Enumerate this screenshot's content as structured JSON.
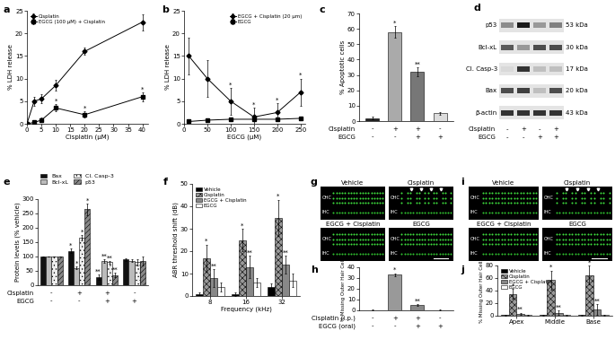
{
  "chart_data": [
    {
      "title": "a",
      "type": "line",
      "x_label": "Cisplatin (µM)",
      "y_label": "% LDH release",
      "x": [
        0,
        2.5,
        5,
        10,
        20,
        40
      ],
      "xlim": [
        0,
        42
      ],
      "xticks": [
        0,
        5,
        10,
        15,
        20,
        25,
        30,
        35,
        40
      ],
      "ylim": [
        0,
        25
      ],
      "yticks": [
        0,
        5,
        10,
        15,
        20,
        25
      ],
      "legend": "upper left",
      "series": [
        {
          "name": "Cisplatin",
          "color": "#000000",
          "marker": "diamond",
          "values": [
            0,
            5,
            5.5,
            8.5,
            16,
            22.5
          ],
          "errors": [
            0.5,
            1,
            1,
            1.2,
            0.8,
            1.8
          ],
          "annotations": [
            null,
            null,
            null,
            null,
            null,
            null
          ]
        },
        {
          "name": "EGCG (100 µM) + Cisplatin",
          "color": "#000000",
          "marker": "square",
          "values": [
            0,
            0.3,
            0.8,
            3.5,
            2,
            6
          ],
          "errors": [
            0.3,
            0.3,
            0.5,
            0.8,
            0.7,
            1
          ],
          "annotations": [
            null,
            null,
            null,
            "*",
            "*",
            "*"
          ]
        }
      ]
    },
    {
      "title": "b",
      "type": "line",
      "x_label": "EGCG (µM)",
      "y_label": "% LDH release",
      "x": [
        10,
        50,
        100,
        150,
        200,
        250
      ],
      "xlim": [
        0,
        260
      ],
      "xticks": [
        0,
        50,
        100,
        150,
        200,
        250
      ],
      "ylim": [
        0,
        25
      ],
      "yticks": [
        0,
        5,
        10,
        15,
        20,
        25
      ],
      "legend": "upper right",
      "series": [
        {
          "name": "EGCG + Cisplatin (20 µm)",
          "color": "#000000",
          "marker": "diamond",
          "values": [
            15,
            10,
            5,
            1.5,
            2.5,
            7
          ],
          "errors": [
            4,
            4,
            3,
            2,
            2,
            3
          ],
          "annotations": [
            null,
            null,
            "*",
            "*",
            "*",
            "*"
          ]
        },
        {
          "name": "EGCG",
          "color": "#000000",
          "marker": "square",
          "values": [
            0.5,
            0.8,
            1,
            1,
            1,
            1.2
          ],
          "errors": [
            0.3,
            0.3,
            0.3,
            0.3,
            0.3,
            0.3
          ],
          "annotations": [
            null,
            null,
            null,
            null,
            null,
            null
          ]
        }
      ]
    },
    {
      "title": "c",
      "type": "bar",
      "y_label": "% Apoptotic cells",
      "ylim": [
        0,
        70
      ],
      "yticks": [
        0,
        10,
        20,
        30,
        40,
        50,
        60,
        70
      ],
      "values": [
        2,
        58,
        32,
        5
      ],
      "errors": [
        1,
        4,
        3,
        1
      ],
      "colors": [
        "#222222",
        "#aaaaaa",
        "#777777",
        "#dddddd"
      ],
      "annotations": [
        null,
        "*",
        "**",
        null
      ],
      "conditions": [
        {
          "label": "Cisplatin",
          "signs": [
            "-",
            "+",
            "+",
            "-"
          ]
        },
        {
          "label": "EGCG",
          "signs": [
            "-",
            "-",
            "+",
            "+"
          ]
        }
      ]
    },
    {
      "title": "e",
      "type": "bar",
      "y_label": "Protein levels (% vehicle)",
      "ylim": [
        0,
        300
      ],
      "yticks": [
        0,
        50,
        100,
        150,
        200,
        250,
        300
      ],
      "legend": "upper left",
      "conditions": [
        {
          "label": "Cisplatin",
          "signs": [
            "-",
            "+",
            "+",
            "-"
          ]
        },
        {
          "label": "EGCG",
          "signs": [
            "-",
            "-",
            "+",
            "+"
          ]
        }
      ],
      "series": [
        {
          "name": "Bax",
          "color": "#111111",
          "values": [
            100,
            120,
            28,
            90
          ],
          "errors": [
            0,
            8,
            8,
            5
          ],
          "annotations": [
            null,
            "*",
            "**",
            null
          ]
        },
        {
          "name": "Bcl-xL",
          "color": "#bbbbbb",
          "values": [
            100,
            60,
            85,
            85
          ],
          "errors": [
            0,
            5,
            6,
            5
          ],
          "annotations": [
            null,
            "*",
            "**",
            null
          ]
        },
        {
          "name": "Cl. Casp-3",
          "color": "#eeeeee",
          "values": [
            100,
            165,
            80,
            80
          ],
          "errors": [
            0,
            10,
            5,
            10
          ],
          "annotations": [
            null,
            "*",
            "**",
            null
          ]
        },
        {
          "name": "p53",
          "color": "#888888",
          "values": [
            100,
            265,
            35,
            85
          ],
          "errors": [
            0,
            20,
            8,
            15
          ],
          "annotations": [
            null,
            "*",
            "**",
            null
          ]
        }
      ]
    },
    {
      "title": "f",
      "type": "bar",
      "x_label": "Frequency (kHz)",
      "y_label": "ABR threshold shift (dB)",
      "categories": [
        "8",
        "16",
        "32"
      ],
      "ylim": [
        0,
        50
      ],
      "yticks": [
        0,
        10,
        20,
        30,
        40,
        50
      ],
      "legend": "upper left",
      "series": [
        {
          "name": "Vehicle",
          "color": "#000000",
          "values": [
            1,
            1,
            4
          ],
          "errors": [
            0.5,
            0.8,
            1.5
          ],
          "annotations": [
            null,
            null,
            null
          ]
        },
        {
          "name": "Cisplatin",
          "color": "#999999",
          "values": [
            17,
            25,
            35
          ],
          "errors": [
            6,
            5,
            8
          ],
          "annotations": [
            "*",
            "*",
            "*"
          ]
        },
        {
          "name": "EGCG + Cisplatin",
          "color": "#888888",
          "values": [
            8,
            13,
            14
          ],
          "errors": [
            4,
            5,
            4
          ],
          "annotations": [
            "**",
            "**",
            "**"
          ]
        },
        {
          "name": "EGCG",
          "color": "#ffffff",
          "values": [
            4,
            6,
            7
          ],
          "errors": [
            2,
            2,
            3
          ],
          "annotations": [
            null,
            null,
            null
          ]
        }
      ]
    },
    {
      "title": "h",
      "type": "bar",
      "y_label": "% Missing Outer Hair Cells",
      "ylim": [
        0,
        40
      ],
      "yticks": [
        0,
        10,
        20,
        30,
        40
      ],
      "values": [
        0.3,
        33,
        5,
        0.3
      ],
      "errors": [
        0.2,
        1.5,
        0.8,
        0.2
      ],
      "colors": [
        "#000000",
        "#999999",
        "#888888",
        "#ffffff"
      ],
      "annotations": [
        null,
        "*",
        "**",
        null
      ],
      "conditions": [
        {
          "label": "Cisplatin (i.p.)",
          "signs": [
            "-",
            "+",
            "+",
            "-"
          ]
        },
        {
          "label": "EGCG (oral)",
          "signs": [
            "-",
            "-",
            "+",
            "+"
          ]
        }
      ]
    },
    {
      "title": "j",
      "type": "bar",
      "y_label": "% Missing Outer Hair Cells",
      "categories": [
        "Apex",
        "Middle",
        "Base"
      ],
      "ylim": [
        0,
        80
      ],
      "yticks": [
        0,
        20,
        40,
        60,
        80
      ],
      "legend": "upper left",
      "series": [
        {
          "name": "Vehicle",
          "color": "#000000",
          "values": [
            1,
            1,
            1
          ],
          "errors": [
            0.5,
            0.5,
            0.5
          ],
          "annotations": [
            null,
            null,
            null
          ]
        },
        {
          "name": "Cisplatin",
          "color": "#999999",
          "values": [
            35,
            57,
            65
          ],
          "errors": [
            8,
            15,
            15
          ],
          "annotations": [
            "*",
            "*",
            "*"
          ]
        },
        {
          "name": "EGCG + Cisplatin",
          "color": "#888888",
          "values": [
            3,
            5,
            10
          ],
          "errors": [
            2,
            3,
            8
          ],
          "annotations": [
            "**",
            "**",
            "**"
          ]
        },
        {
          "name": "EGCG",
          "color": "#ffffff",
          "values": [
            1,
            1,
            1
          ],
          "errors": [
            0.5,
            0.5,
            0.5
          ],
          "annotations": [
            null,
            null,
            null
          ]
        }
      ]
    }
  ],
  "blot": {
    "title": "d",
    "bands": [
      {
        "name": "p53",
        "size": "53 kDa"
      },
      {
        "name": "Bcl-xL",
        "size": "30 kDa"
      },
      {
        "name": "Cl. Casp-3",
        "size": "17 kDa"
      },
      {
        "name": "Bax",
        "size": "20 kDa"
      },
      {
        "name": "β-actin",
        "size": "43 kDa"
      }
    ],
    "conditions": [
      {
        "label": "Cisplatin",
        "signs": [
          "-",
          "+",
          "-",
          "+"
        ]
      },
      {
        "label": "EGCG",
        "signs": [
          "-",
          "-",
          "+",
          "+"
        ]
      }
    ]
  },
  "images": [
    {
      "title": "g",
      "labels": [
        "Vehicle",
        "Cisplatin",
        "EGCG + Cisplatin",
        "EGCG"
      ],
      "regions": [
        "OHC",
        "IHC"
      ]
    },
    {
      "title": "i",
      "labels": [
        "Vehicle",
        "Cisplatin",
        "EGCG + Cisplatin",
        "EGCG"
      ],
      "regions": [
        "OHC",
        "IHC"
      ]
    }
  ]
}
